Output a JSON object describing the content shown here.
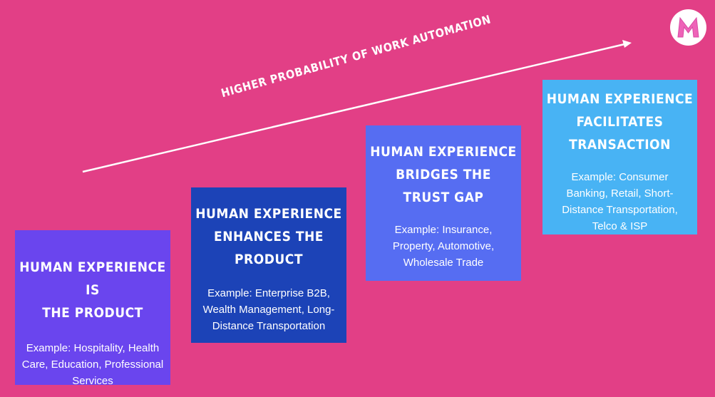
{
  "arrow": {
    "label": "HIGHER PROBABILITY OF WORK AUTOMATION"
  },
  "logo": {
    "letter": "M",
    "icon": "m-logo-icon",
    "color": "#e85ab0"
  },
  "boxes": [
    {
      "title": "HUMAN EXPERIENCE IS\nTHE PRODUCT",
      "example": "Example: Hospitality, Health\nCare, Education, Professional\nServices",
      "color": "#6a45ee"
    },
    {
      "title": "HUMAN EXPERIENCE\nENHANCES THE\nPRODUCT",
      "example": "Example: Enterprise B2B,\nWealth Management, Long-\nDistance Transportation",
      "color": "#1c43b7"
    },
    {
      "title": "HUMAN EXPERIENCE\nBRIDGES THE\nTRUST GAP",
      "example": "Example: Insurance,\nProperty, Automotive,\nWholesale Trade",
      "color": "#566df2"
    },
    {
      "title": "HUMAN EXPERIENCE\nFACILITATES\nTRANSACTION",
      "example": "Example:  Consumer\nBanking, Retail, Short-\nDistance Transportation,\nTelco & ISP",
      "color": "#48b3f4"
    }
  ],
  "background_color": "#e23f86"
}
